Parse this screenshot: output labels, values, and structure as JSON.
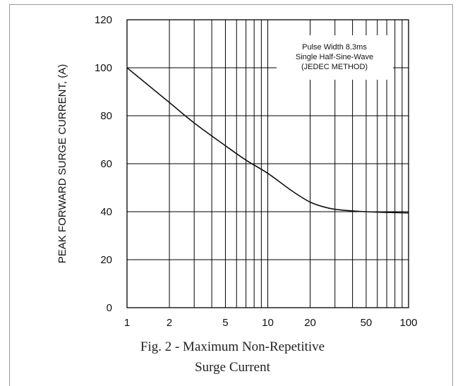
{
  "chart_data": {
    "type": "line",
    "x_scale": "log",
    "xlim": [
      1,
      100
    ],
    "ylim": [
      0,
      120
    ],
    "x_ticks": [
      1,
      2,
      5,
      10,
      20,
      50,
      100
    ],
    "y_ticks": [
      0,
      20,
      40,
      60,
      80,
      100,
      120
    ],
    "ylabel": "PEAK FORWARD SURGE CURRENT, (A)",
    "annotation": [
      "Pulse Width 8.3ms",
      "Single Half-Sine-Wave",
      "(JEDEC METHOD)"
    ],
    "caption": [
      "Fig. 2 - Maximum Non-Repetitive",
      "Surge Current"
    ],
    "grid": true,
    "series": [
      {
        "x": [
          1,
          2,
          3,
          5,
          7,
          10,
          15,
          20,
          25,
          30,
          40,
          50,
          70,
          100
        ],
        "y": [
          100,
          85.5,
          77,
          67.5,
          61.5,
          56,
          48.5,
          44,
          42,
          41,
          40.3,
          40,
          39.7,
          39.5
        ]
      }
    ]
  }
}
